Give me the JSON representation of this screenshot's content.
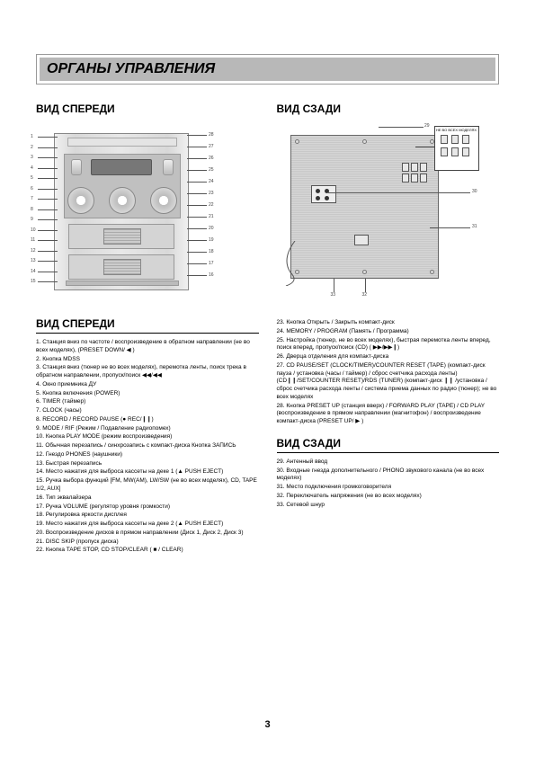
{
  "header": "ОРГАНЫ УПРАВЛЕНИЯ",
  "frontTitle": "ВИД СПЕРЕДИ",
  "rearTitle": "ВИД СЗАДИ",
  "pageNumber": "3",
  "frontLeaders": {
    "left": [
      "1",
      "2",
      "3",
      "4",
      "5",
      "6",
      "7",
      "8",
      "9",
      "10",
      "11",
      "12",
      "13",
      "14",
      "15"
    ],
    "right": [
      "28",
      "27",
      "26",
      "25",
      "24",
      "23",
      "22",
      "21",
      "20",
      "19",
      "18",
      "17",
      "16"
    ]
  },
  "rearLeaders": [
    "29",
    "30",
    "31",
    "33",
    "32"
  ],
  "calloutTitle": "НЕ ВО ВСЕХ МОДЕЛЯХ",
  "frontItems": [
    "1. Станция вниз по частоте / воспроизведение в обратном направлении (не во всех моделях), (PRESET DOWN/ ◀ )",
    "2. Кнопка MDSS",
    "3. Станция вниз (тюнер не во всех моделях), перемотка ленты, поиск трека в обратном направлении, пропуск/поиск ◀◀/◀◀",
    "4. Окно приемника ДУ",
    "5. Кнопка включения (POWER)",
    "6. TIMER (таймер)",
    "7. CLOCK (часы)",
    "8. RECORD / RECORD PAUSE (● REC/❙❙)",
    "9. MODE / RIF (Режим / Подавление радиопомех)",
    "10. Кнопка PLAY MODE (режим воспроизведения)",
    "11. Обычная перезапись / синхрозапись с компакт-диска Кнопка ЗАПИСЬ",
    "12. Гнездо PHONES (наушники)",
    "13. Быстрая перезапись",
    "14. Место нажатия для выброса кассеты на деке 1 (▲ PUSH EJECT)",
    "15. Ручка выбора функций [FM, MW(AM), LW/SW (не во всех моделях), CD, TAPE 1/2, AUX]",
    "16. Тип эквалайзера",
    "17. Ручка VOLUME (регулятор уровня громкости)",
    "18. Регулировка яркости дисплея",
    "19. Место нажатия для выброса кассеты на деке 2 (▲ PUSH EJECT)",
    "20. Воспроизведение дисков в прямом направлении (Диск 1, Диск 2, Диск 3)",
    "21. DISC SKIP (пропуск диска)",
    "22. Кнопка TAPE STOP, CD STOP/CLEAR ( ■ / CLEAR)"
  ],
  "frontItemsRight": [
    "23. Кнопка Открыть / Закрыть компакт-диск",
    "24. MEMORY / PROGRAM (Память / Программа)",
    "25. Настройка (тюнер, не во всех моделях), быстрая перемотка ленты вперед, поиск вперед, пропуск/поиск (CD) ( ▶▶/▶▶❙)",
    "26. Дверца отделения для компакт-диска",
    "27. CD PAUSE/SET (CLOCK/TIMER)/COUNTER RESET (TAPE) (компакт-диск пауза / установка (часы / таймер) / сброс счетчика расхода ленты) (CD❙❙/SET/COUNTER RESET)/RDS (TUNER) (компакт-диск ❙❙ /установка / сброс счетчика расхода ленты / система приема данных по радио (тюнер); не во всех моделях",
    "28. Кнопка PRESET UP (станция вверх) / FORWARD PLAY (TAPE) / CD PLAY (воспроизведение в прямом направлении (магнитофон) / воспроизведение компакт-диска (PRESET UP/ ▶ )"
  ],
  "rearItems": [
    "29. Антенный ввод",
    "30. Входные гнезда дополнительного / PHONO звукового канала (не во всех моделях)",
    "31. Место подключения громкоговорителя",
    "32. Переключатель напряжения (не во всех моделях)",
    "33. Сетевой шнур"
  ],
  "colors": {
    "headerBg": "#b8b8b8",
    "border": "#999999",
    "text": "#000000",
    "deviceBody": "#d8d8d8",
    "leaderLine": "#555555"
  }
}
